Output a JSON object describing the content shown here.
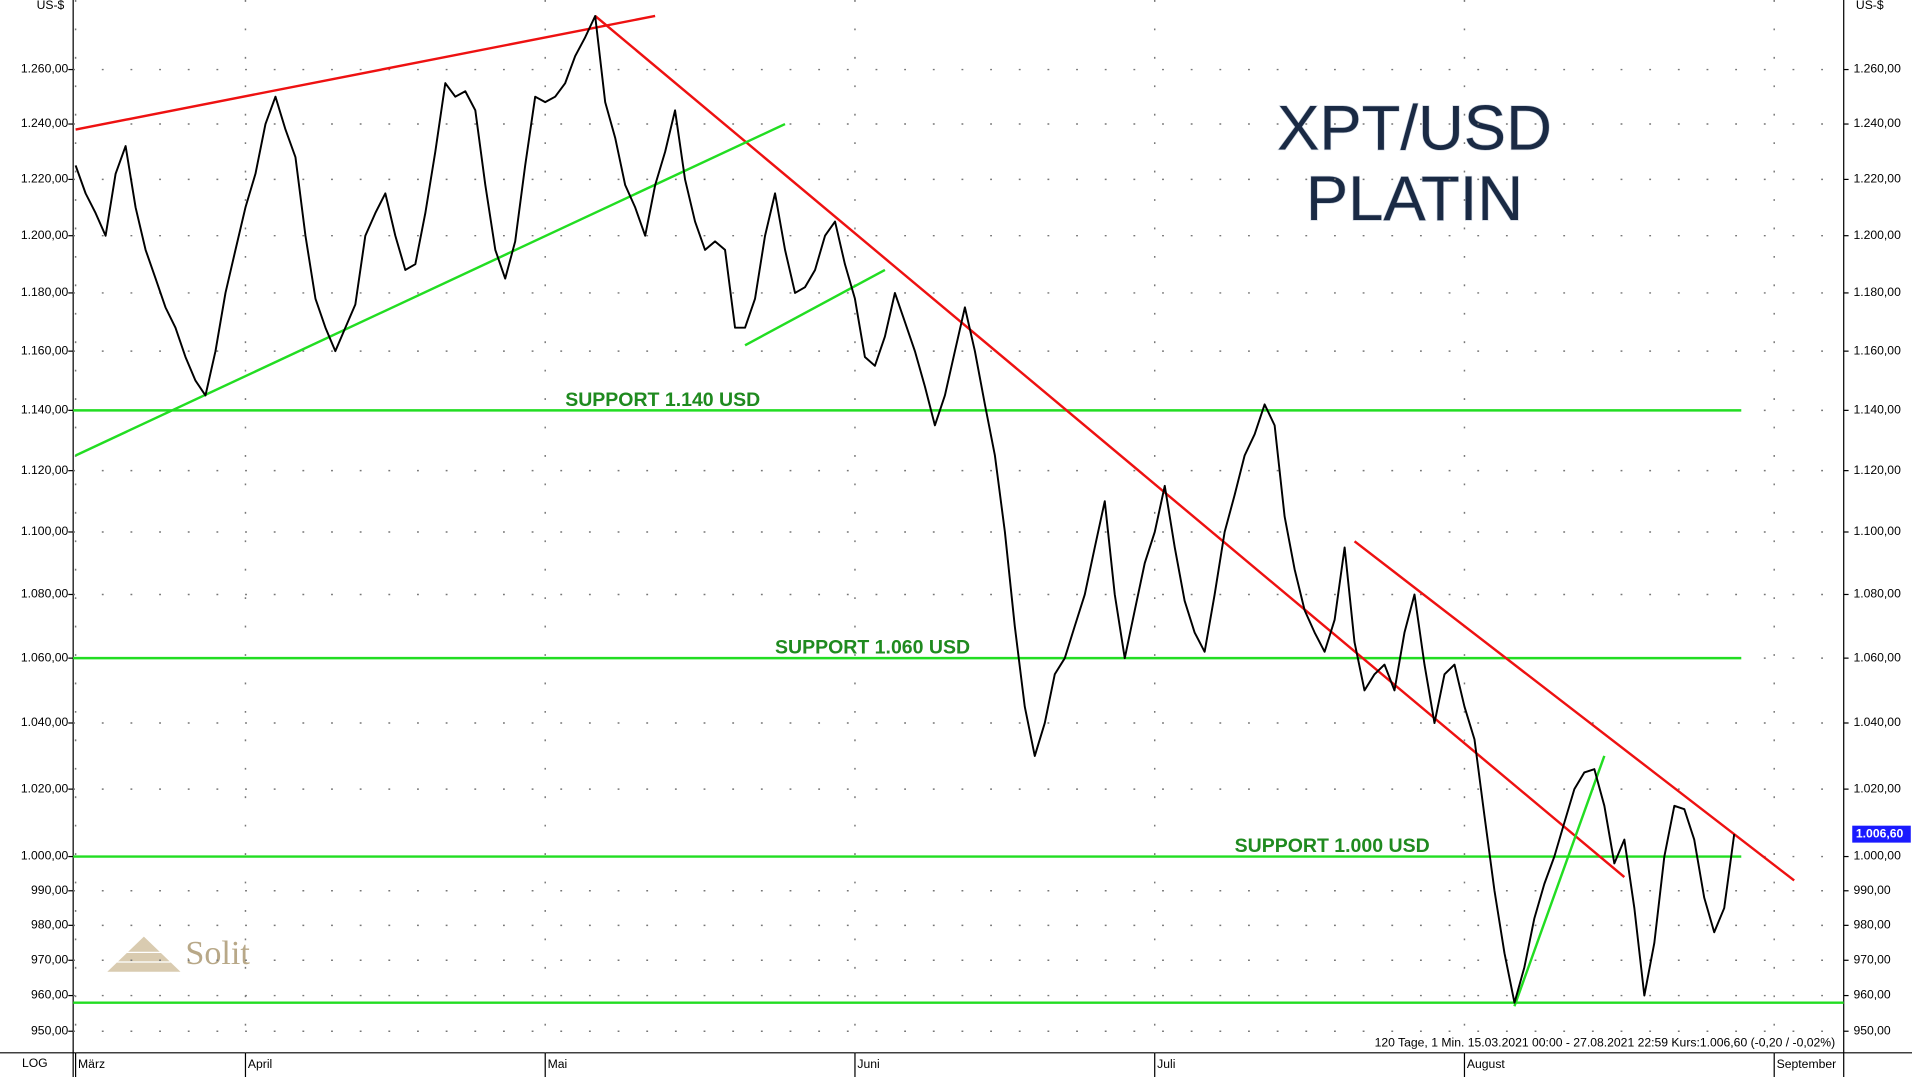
{
  "chart_data": {
    "type": "line",
    "title": "XPT/USD",
    "subtitle": "PLATIN",
    "y_unit": "US-$",
    "scale_label": "LOG",
    "log_scale": true,
    "grid": "dotted",
    "footer": "120 Tage, 1 Min. 15.03.2021 00:00 - 27.08.2021 22:59 Kurs:1.006,60 (-0,20 / -0,02%)",
    "logo": "Solit",
    "categories": [
      "März",
      null,
      null,
      null,
      null,
      null,
      null,
      null,
      null,
      null,
      null,
      null,
      null,
      null,
      null,
      null,
      null,
      "April",
      null,
      null,
      null,
      null,
      null,
      null,
      null,
      null,
      null,
      null,
      null,
      null,
      null,
      null,
      null,
      null,
      null,
      null,
      null,
      null,
      null,
      null,
      null,
      null,
      null,
      null,
      null,
      null,
      null,
      "Mai",
      null,
      null,
      null,
      null,
      null,
      null,
      null,
      null,
      null,
      null,
      null,
      null,
      null,
      null,
      null,
      null,
      null,
      null,
      null,
      null,
      null,
      null,
      null,
      null,
      null,
      null,
      null,
      null,
      null,
      null,
      "Juni",
      null,
      null,
      null,
      null,
      null,
      null,
      null,
      null,
      null,
      null,
      null,
      null,
      null,
      null,
      null,
      null,
      null,
      null,
      null,
      null,
      null,
      null,
      null,
      null,
      null,
      null,
      null,
      null,
      null,
      "Juli",
      null,
      null,
      null,
      null,
      null,
      null,
      null,
      null,
      null,
      null,
      null,
      null,
      null,
      null,
      null,
      null,
      null,
      null,
      null,
      null,
      null,
      null,
      null,
      null,
      null,
      null,
      null,
      null,
      null,
      null,
      "August",
      null,
      null,
      null,
      null,
      null,
      null,
      null,
      null,
      null,
      null,
      null,
      null,
      null,
      null,
      null,
      null,
      null,
      null,
      null,
      null,
      null,
      null,
      null,
      null,
      null,
      null,
      null,
      null,
      null,
      null,
      "September"
    ],
    "series": [
      {
        "name": "XPT/USD",
        "color": "#000000",
        "values": [
          1225,
          1215,
          1208,
          1200,
          1222,
          1232,
          1210,
          1195,
          1185,
          1175,
          1168,
          1158,
          1150,
          1145,
          1160,
          1180,
          1195,
          1210,
          1222,
          1240,
          1250,
          1238,
          1228,
          1200,
          1178,
          1168,
          1160,
          1168,
          1176,
          1200,
          1208,
          1215,
          1200,
          1188,
          1190,
          1208,
          1230,
          1255,
          1250,
          1252,
          1245,
          1218,
          1195,
          1185,
          1198,
          1225,
          1250,
          1248,
          1250,
          1255,
          1265,
          1272,
          1280,
          1248,
          1235,
          1218,
          1210,
          1200,
          1218,
          1230,
          1245,
          1220,
          1205,
          1195,
          1198,
          1195,
          1168,
          1168,
          1178,
          1200,
          1215,
          1195,
          1180,
          1182,
          1188,
          1200,
          1205,
          1190,
          1178,
          1158,
          1155,
          1165,
          1180,
          1170,
          1160,
          1148,
          1135,
          1145,
          1160,
          1175,
          1160,
          1142,
          1125,
          1100,
          1070,
          1045,
          1030,
          1040,
          1055,
          1060,
          1070,
          1080,
          1095,
          1110,
          1080,
          1060,
          1075,
          1090,
          1100,
          1115,
          1095,
          1078,
          1068,
          1062,
          1080,
          1100,
          1112,
          1125,
          1132,
          1142,
          1135,
          1105,
          1088,
          1075,
          1068,
          1062,
          1072,
          1095,
          1065,
          1050,
          1055,
          1058,
          1050,
          1068,
          1080,
          1058,
          1040,
          1055,
          1058,
          1045,
          1035,
          1012,
          990,
          972,
          958,
          968,
          982,
          992,
          1000,
          1010,
          1020,
          1025,
          1026,
          1015,
          998,
          1005,
          985,
          960,
          975,
          1000,
          1015,
          1014,
          1005,
          988,
          978,
          985,
          1006.6,
          null,
          null,
          null,
          null
        ]
      }
    ],
    "last_price": {
      "value": 1006.6,
      "label": "1.006,60"
    },
    "ylim": [
      944,
      1286
    ],
    "yticks": [
      {
        "value": 950,
        "label": "950,00"
      },
      {
        "value": 960,
        "label": "960,00"
      },
      {
        "value": 970,
        "label": "970,00"
      },
      {
        "value": 980,
        "label": "980,00"
      },
      {
        "value": 990,
        "label": "990,00"
      },
      {
        "value": 1000,
        "label": "1.000,00"
      },
      {
        "value": 1020,
        "label": "1.020,00"
      },
      {
        "value": 1040,
        "label": "1.040,00"
      },
      {
        "value": 1060,
        "label": "1.060,00"
      },
      {
        "value": 1080,
        "label": "1.080,00"
      },
      {
        "value": 1100,
        "label": "1.100,00"
      },
      {
        "value": 1120,
        "label": "1.120,00"
      },
      {
        "value": 1140,
        "label": "1.140,00"
      },
      {
        "value": 1160,
        "label": "1.160,00"
      },
      {
        "value": 1180,
        "label": "1.180,00"
      },
      {
        "value": 1200,
        "label": "1.200,00"
      },
      {
        "value": 1220,
        "label": "1.220,00"
      },
      {
        "value": 1240,
        "label": "1.240,00"
      },
      {
        "value": 1260,
        "label": "1.260,00"
      }
    ],
    "support_lines": [
      {
        "value": 1140,
        "label": "SUPPORT 1.140 USD",
        "label_at": 49,
        "color": "#22dd22"
      },
      {
        "value": 1060,
        "label": "SUPPORT 1.060 USD",
        "label_at": 70,
        "color": "#22dd22"
      },
      {
        "value": 1000,
        "label": "SUPPORT 1.000 USD",
        "label_at": 116,
        "color": "#22dd22"
      },
      {
        "value": 958,
        "color": "#22dd22"
      }
    ],
    "trend_lines": [
      {
        "from": [
          0,
          1238
        ],
        "to": [
          58,
          1280
        ],
        "color": "#ee1111"
      },
      {
        "from": [
          52,
          1280
        ],
        "to": [
          155,
          994
        ],
        "color": "#ee1111"
      },
      {
        "from": [
          128,
          1097
        ],
        "to": [
          172,
          993
        ],
        "color": "#ee1111"
      },
      {
        "from": [
          0,
          1125
        ],
        "to": [
          71,
          1240
        ],
        "color": "#22dd22"
      },
      {
        "from": [
          67,
          1162
        ],
        "to": [
          81,
          1188
        ],
        "color": "#22dd22"
      },
      {
        "from": [
          144,
          957
        ],
        "to": [
          153,
          1030
        ],
        "color": "#22dd22"
      }
    ]
  }
}
